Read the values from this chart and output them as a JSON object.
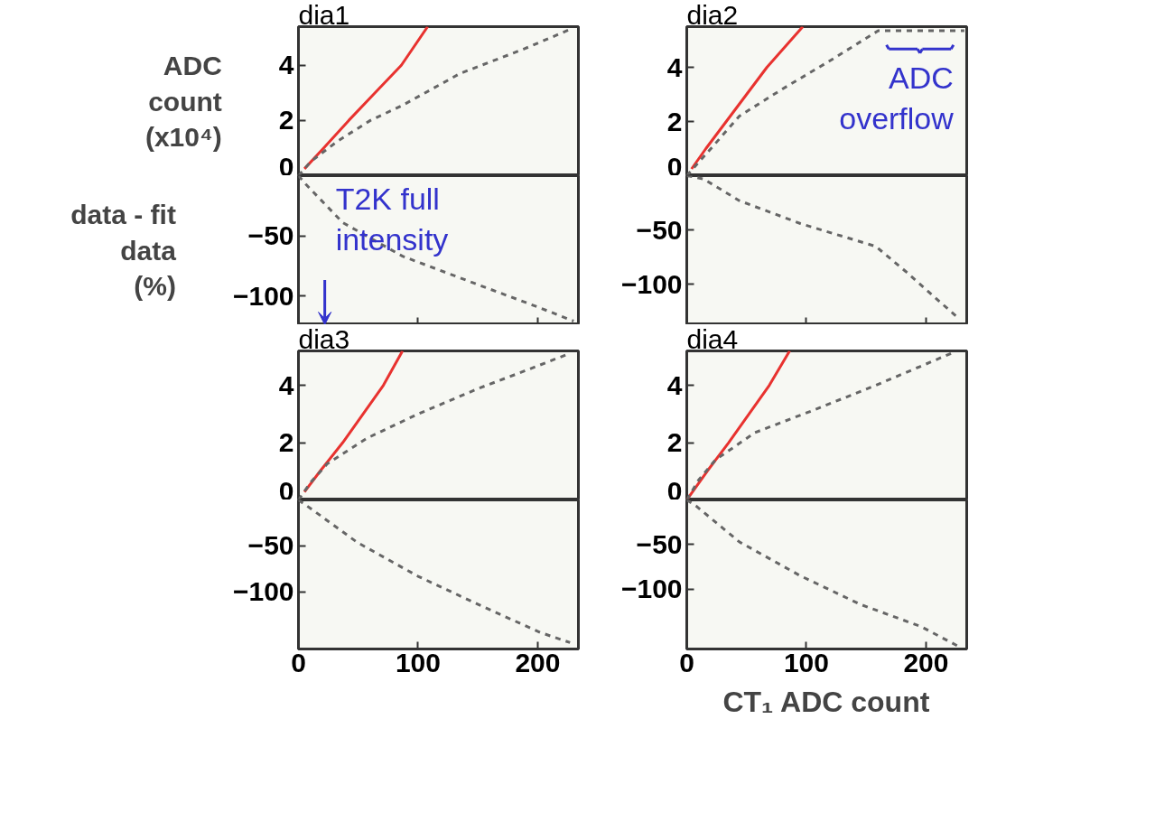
{
  "chart_data": [
    {
      "type": "line",
      "title": "dia1",
      "ylabel": "ADC\ncount\n(x10⁴)",
      "xlim": [
        0,
        234
      ],
      "ylim": [
        0,
        5.4
      ],
      "yticks": [
        0,
        2,
        4
      ],
      "tick_labels": "y",
      "series": [
        {
          "color": "#e8322f",
          "line_style": "solid",
          "x": [
            5,
            21,
            42,
            64,
            86,
            108
          ],
          "values": [
            0.25,
            1,
            2,
            3,
            4,
            5.4
          ]
        },
        {
          "color": "#666666",
          "line_style": "dashed",
          "x": [
            0,
            10,
            32,
            60,
            87,
            135,
            189,
            227
          ],
          "values": [
            0,
            0.5,
            1.23,
            2.0,
            2.55,
            3.7,
            4.6,
            5.3
          ]
        }
      ]
    },
    {
      "type": "line",
      "ylabel": "data - fit\ndata\n(%)",
      "xlim": [
        0,
        234
      ],
      "ylim": [
        -124,
        0
      ],
      "yticks": [
        -50,
        -100
      ],
      "xticks": [
        0,
        100,
        200
      ],
      "tick_labels": "y",
      "line_style": "dashed",
      "annotations": [
        "T2K full intensity"
      ],
      "series": [
        {
          "color": "#666666",
          "x": [
            0,
            6,
            37,
            87,
            151,
            202,
            230
          ],
          "values": [
            0,
            -7,
            -39,
            -67,
            -91,
            -110,
            -121
          ]
        }
      ]
    },
    {
      "type": "line",
      "title": "dia2",
      "xlim": [
        0,
        234
      ],
      "ylim": [
        0,
        5.5
      ],
      "yticks": [
        0,
        2,
        4
      ],
      "tick_labels": "y",
      "annotations": [
        "ADC overflow"
      ],
      "series": [
        {
          "color": "#e8322f",
          "line_style": "solid",
          "x": [
            4,
            16,
            33,
            50,
            67,
            97
          ],
          "values": [
            0.25,
            1,
            2,
            3,
            4,
            5.5
          ]
        },
        {
          "color": "#666666",
          "line_style": "dashed",
          "x": [
            0,
            19,
            44,
            80,
            120,
            160,
            232
          ],
          "values": [
            0,
            0.94,
            2.2,
            3.2,
            4.25,
            5.35,
            5.35
          ]
        }
      ]
    },
    {
      "type": "line",
      "xlim": [
        0,
        234
      ],
      "ylim": [
        -137,
        0
      ],
      "yticks": [
        -50,
        -100
      ],
      "xticks": [
        0,
        100,
        200
      ],
      "tick_labels": "y",
      "line_style": "dashed",
      "series": [
        {
          "color": "#666666",
          "x": [
            0,
            14,
            44,
            95,
            158,
            183,
            227
          ],
          "values": [
            0,
            -3,
            -23,
            -44,
            -65,
            -88,
            -131
          ]
        }
      ]
    },
    {
      "type": "line",
      "title": "dia3",
      "xlim": [
        0,
        234
      ],
      "ylim": [
        0,
        5.2
      ],
      "yticks": [
        0,
        2,
        4
      ],
      "tick_labels": "y",
      "series": [
        {
          "color": "#e8322f",
          "line_style": "solid",
          "x": [
            5,
            18,
            37,
            54,
            71,
            87
          ],
          "values": [
            0.28,
            1,
            2,
            3,
            4,
            5.2
          ]
        },
        {
          "color": "#666666",
          "line_style": "dashed",
          "x": [
            0,
            10,
            24,
            57,
            100,
            151,
            189,
            226
          ],
          "values": [
            0,
            0.6,
            1.26,
            2.15,
            3.0,
            3.9,
            4.5,
            5.1
          ]
        }
      ]
    },
    {
      "type": "line",
      "xlim": [
        0,
        234
      ],
      "ylim": [
        -162,
        0
      ],
      "yticks": [
        -50,
        -100
      ],
      "xticks": [
        0,
        100,
        200
      ],
      "line_style": "dashed",
      "series": [
        {
          "color": "#666666",
          "x": [
            0,
            11,
            49,
            100,
            151,
            202,
            227
          ],
          "values": [
            0,
            -10,
            -46,
            -83,
            -114,
            -144,
            -155
          ]
        }
      ]
    },
    {
      "type": "line",
      "title": "dia4",
      "xlim": [
        0,
        234
      ],
      "ylim": [
        0,
        5.2
      ],
      "yticks": [
        0,
        2,
        4
      ],
      "tick_labels": "y",
      "series": [
        {
          "color": "#e8322f",
          "line_style": "solid",
          "x": [
            0,
            17,
            35,
            52,
            69,
            86
          ],
          "values": [
            0,
            1,
            2,
            3,
            4,
            5.2
          ]
        },
        {
          "color": "#666666",
          "line_style": "dashed",
          "x": [
            0,
            10,
            24,
            57,
            107,
            158,
            223
          ],
          "values": [
            0,
            0.7,
            1.4,
            2.35,
            3.15,
            4.0,
            5.15
          ]
        }
      ]
    },
    {
      "type": "line",
      "xlabel": "CT₁ ADC count",
      "xlim": [
        0,
        234
      ],
      "ylim": [
        -167,
        0
      ],
      "yticks": [
        -50,
        -100
      ],
      "xticks": [
        0,
        100,
        200
      ],
      "line_style": "dashed",
      "series": [
        {
          "color": "#666666",
          "x": [
            0,
            8,
            44,
            95,
            145,
            196,
            227
          ],
          "values": [
            0,
            -7,
            -47,
            -85,
            -117,
            -142,
            -164
          ]
        }
      ]
    }
  ]
}
